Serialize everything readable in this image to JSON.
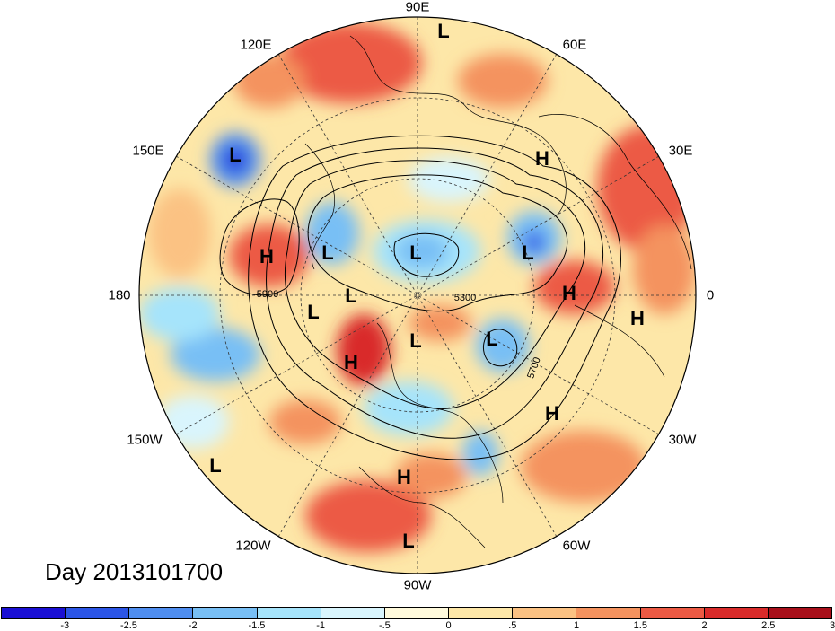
{
  "title": "Day 2013101700",
  "longitude_labels": [
    {
      "id": "lon-90e",
      "text": "90E"
    },
    {
      "id": "lon-60e",
      "text": "60E"
    },
    {
      "id": "lon-120e",
      "text": "120E"
    },
    {
      "id": "lon-150e",
      "text": "150E"
    },
    {
      "id": "lon-30e",
      "text": "30E"
    },
    {
      "id": "lon-180",
      "text": "180"
    },
    {
      "id": "lon-0",
      "text": "0"
    },
    {
      "id": "lon-150w",
      "text": "150W"
    },
    {
      "id": "lon-30w",
      "text": "30W"
    },
    {
      "id": "lon-120w",
      "text": "120W"
    },
    {
      "id": "lon-60w",
      "text": "60W"
    },
    {
      "id": "lon-90w",
      "text": "90W"
    }
  ],
  "pressure_markers": [
    {
      "id": "m1",
      "text": "L"
    },
    {
      "id": "m2",
      "text": "L"
    },
    {
      "id": "m3",
      "text": "H"
    },
    {
      "id": "m4",
      "text": "H"
    },
    {
      "id": "m5",
      "text": "L"
    },
    {
      "id": "m6",
      "text": "L"
    },
    {
      "id": "m7",
      "text": "L"
    },
    {
      "id": "m8",
      "text": "H"
    },
    {
      "id": "m9",
      "text": "L"
    },
    {
      "id": "m10",
      "text": "L"
    },
    {
      "id": "m11",
      "text": "H"
    },
    {
      "id": "m12",
      "text": "L"
    },
    {
      "id": "m13",
      "text": "H"
    },
    {
      "id": "m14",
      "text": "H"
    },
    {
      "id": "m15",
      "text": "L"
    },
    {
      "id": "m16",
      "text": "H"
    },
    {
      "id": "m17",
      "text": "L"
    },
    {
      "id": "m18",
      "text": "L"
    }
  ],
  "contour_labels": [
    {
      "id": "c5900",
      "text": "5900"
    },
    {
      "id": "c5300",
      "text": "5300"
    },
    {
      "id": "c5700",
      "text": "5700"
    }
  ],
  "colorbar": {
    "colors": [
      "#1a0fd4",
      "#2b55e6",
      "#4f8ef0",
      "#78bff5",
      "#a6e4fb",
      "#d9f5fd",
      "#fffadc",
      "#fde7a8",
      "#fbc283",
      "#f4935f",
      "#ec5a44",
      "#d92b2a",
      "#a80f1a"
    ],
    "ticks": [
      "-3",
      "-2.5",
      "-2",
      "-1.5",
      "-1",
      "-.5",
      "0",
      ".5",
      "1",
      "1.5",
      "2",
      "2.5",
      "3"
    ]
  }
}
